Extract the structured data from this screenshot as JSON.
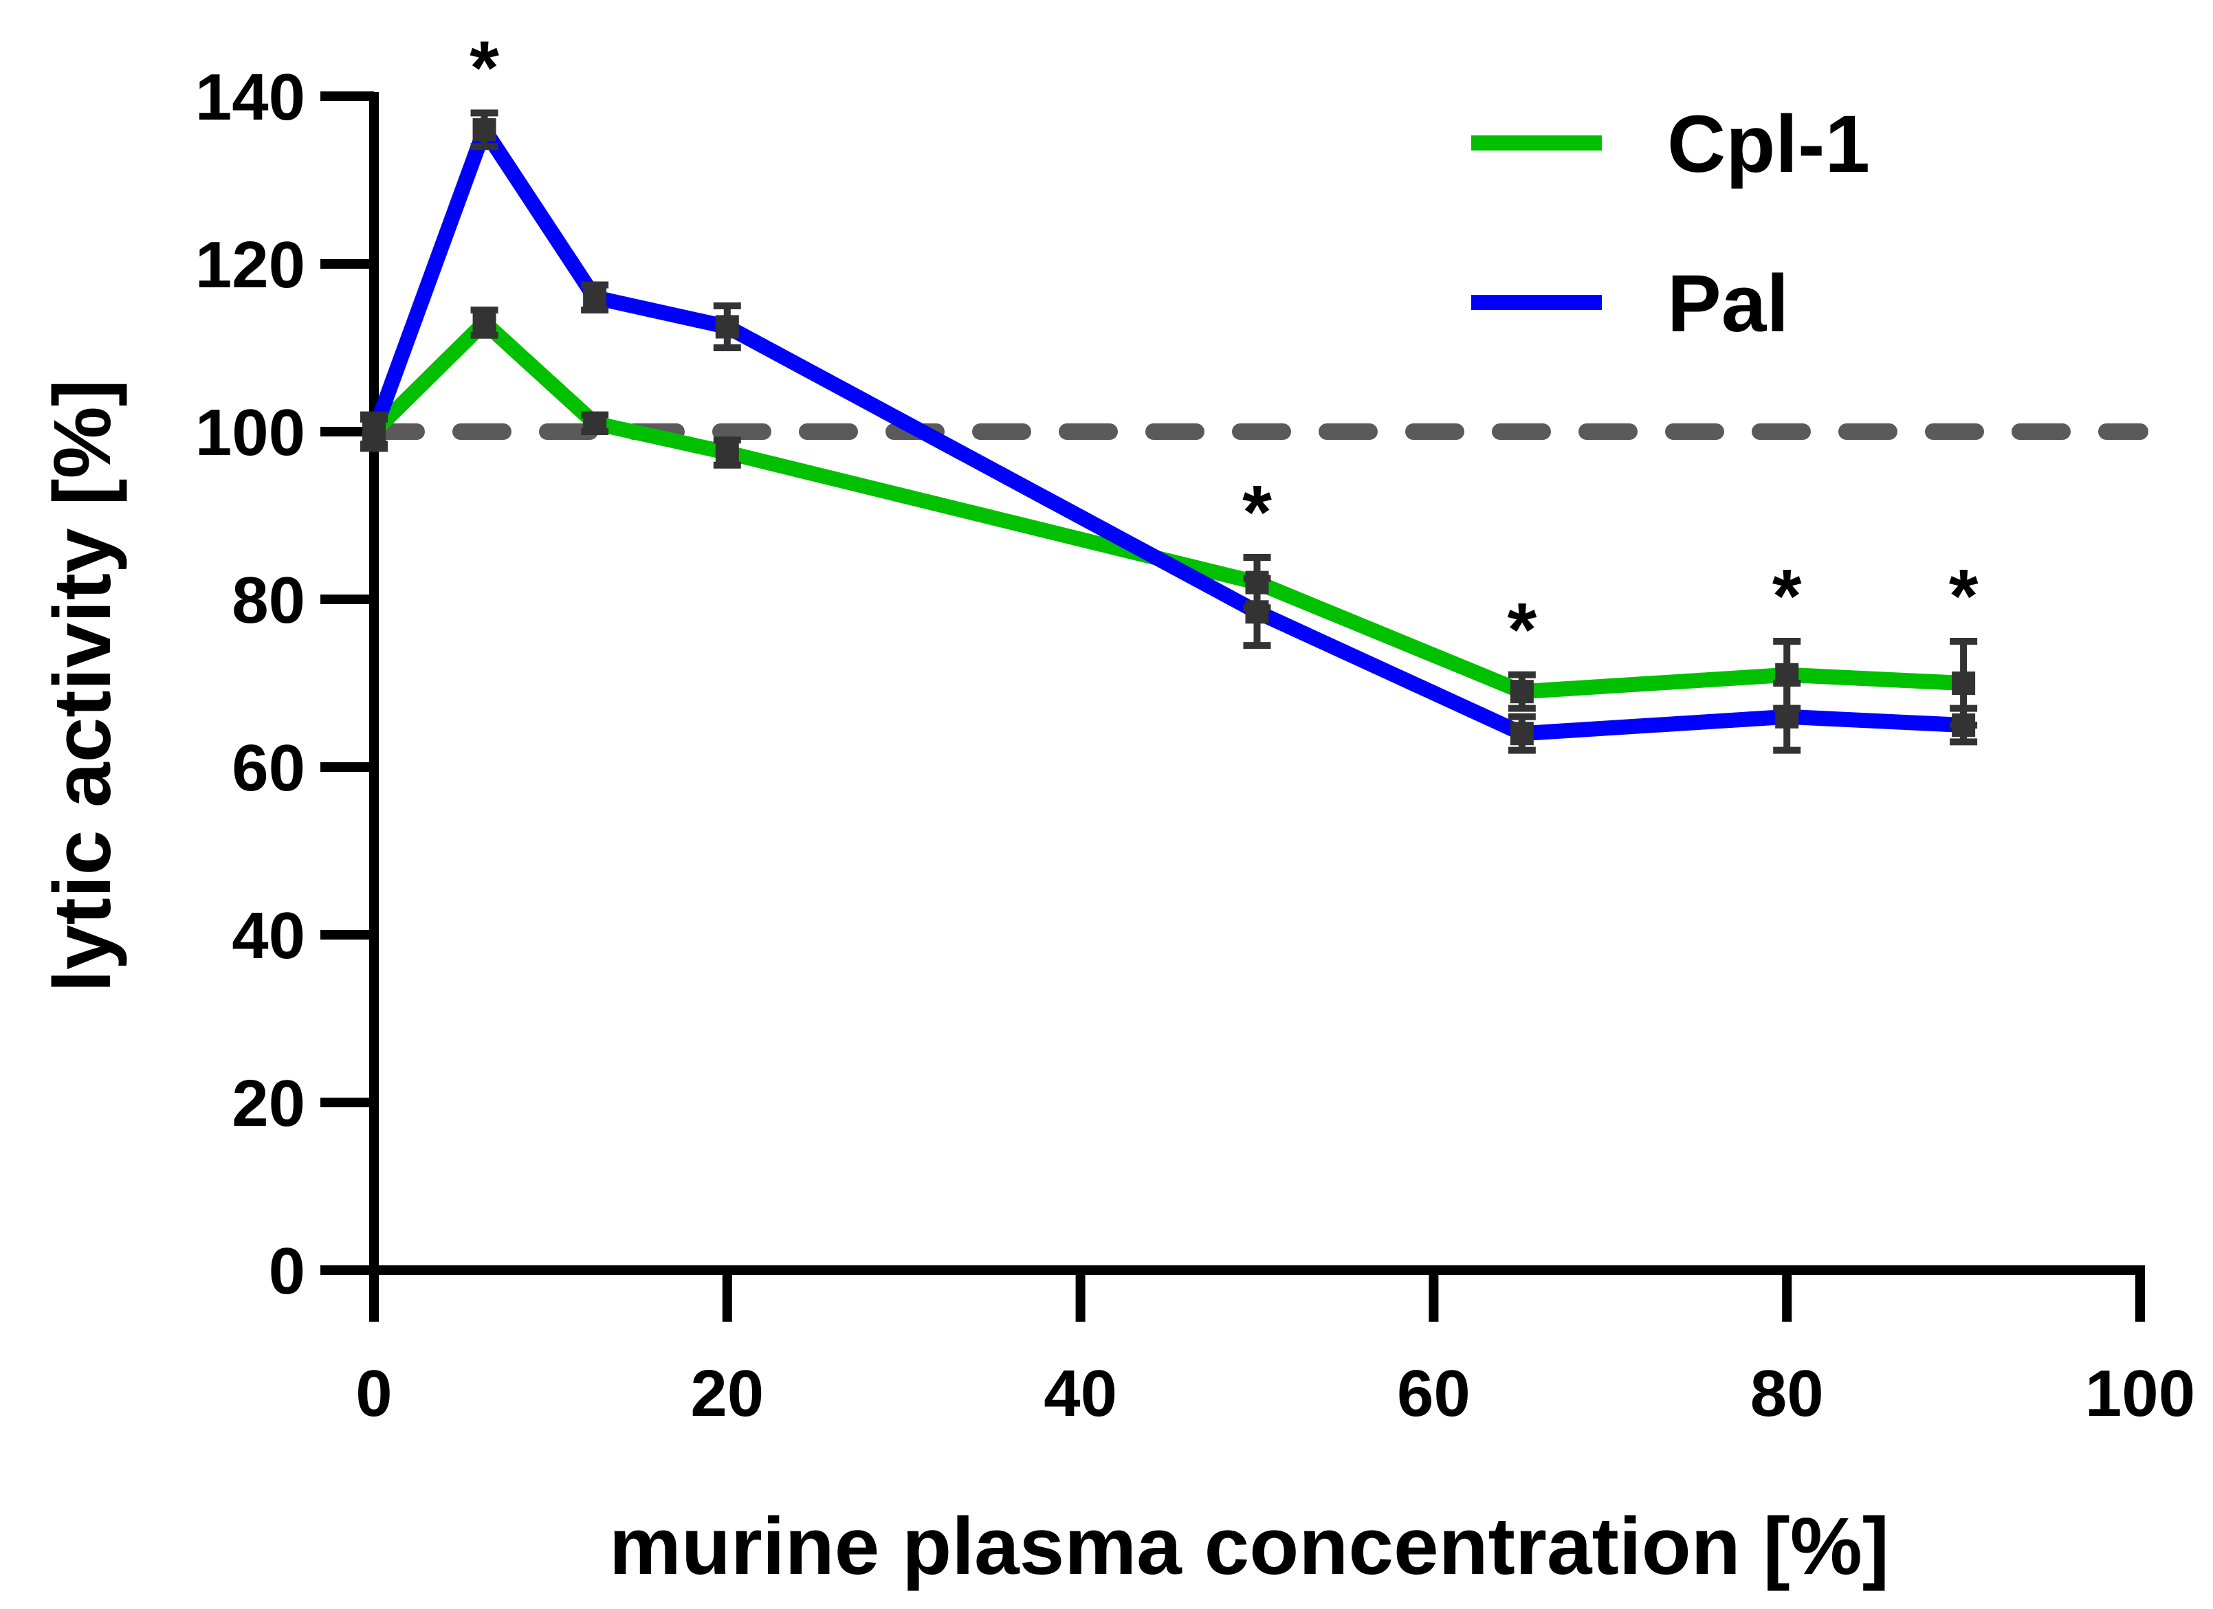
{
  "chart_data": {
    "type": "line",
    "title": "",
    "xlabel": "murine plasma concentration [%]",
    "ylabel": "lytic activity [%]",
    "xlim": [
      0,
      100
    ],
    "ylim": [
      0,
      140
    ],
    "xticks": [
      "0",
      "20",
      "40",
      "60",
      "80",
      "100"
    ],
    "yticks": [
      "0",
      "20",
      "40",
      "60",
      "80",
      "100",
      "120",
      "140"
    ],
    "reference_line": {
      "y": 100,
      "style": "dashed",
      "color": "#5a5a5a"
    },
    "legend_position": "top-right",
    "series": [
      {
        "name": "Cpl-1",
        "color": "#00c000",
        "x": [
          0,
          6.25,
          12.5,
          20,
          50,
          65,
          80,
          90
        ],
        "y": [
          100,
          113,
          101,
          97.5,
          82,
          69,
          71,
          70
        ],
        "error": [
          1.5,
          1.5,
          1.0,
          1.5,
          3.0,
          2.0,
          4.0,
          5.0
        ]
      },
      {
        "name": "Pal",
        "color": "#0000ff",
        "x": [
          0,
          6.25,
          12.5,
          20,
          50,
          65,
          80,
          90
        ],
        "y": [
          100,
          136,
          116,
          112.5,
          78.5,
          64,
          66,
          65
        ],
        "error": [
          2.0,
          2.0,
          1.5,
          2.5,
          4.0,
          2.0,
          4.0,
          2.0
        ]
      }
    ],
    "significance": {
      "marker": "*",
      "x": [
        6.25,
        50,
        65,
        80,
        90
      ]
    }
  }
}
